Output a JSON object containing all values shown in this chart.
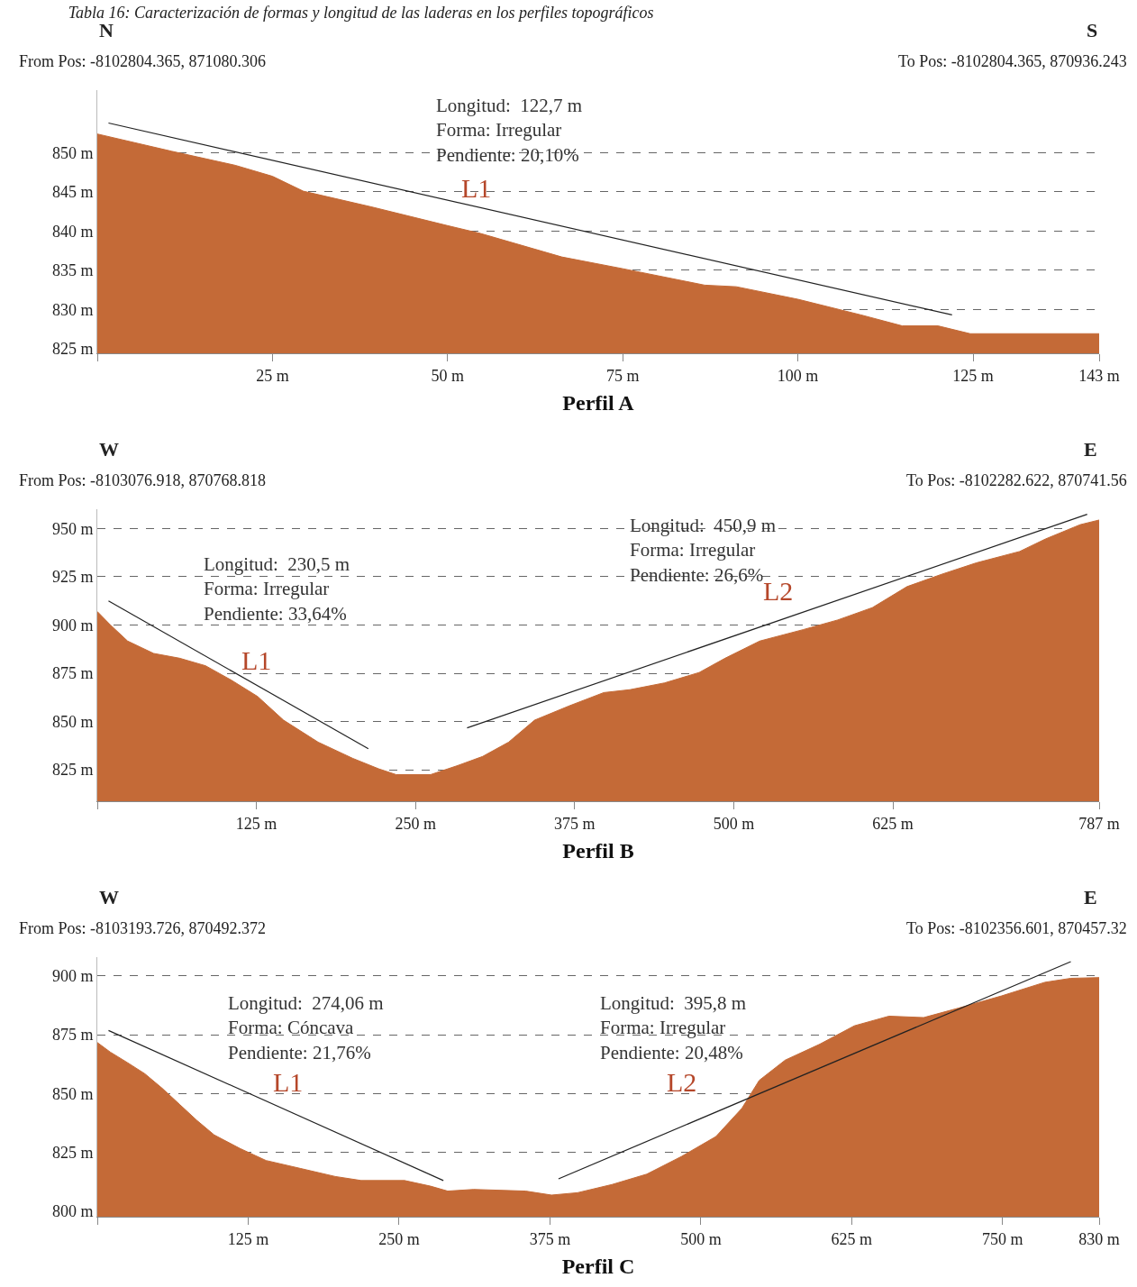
{
  "chart_data": [
    {
      "type": "area",
      "title": "Tabla 16: Caracterización de formas y longitud de las laderas en los perfiles topográficos",
      "xlabel": "Perfil A",
      "xlim": [
        0,
        143
      ],
      "ylim": [
        824.4,
        858
      ],
      "xticks": [
        {
          "value": 0,
          "label": null
        },
        {
          "value": 25,
          "label": "25 m"
        },
        {
          "value": 50,
          "label": "50 m"
        },
        {
          "value": 75,
          "label": "75 m"
        },
        {
          "value": 100,
          "label": "100 m"
        },
        {
          "value": 125,
          "label": "125 m"
        },
        {
          "value": 143,
          "label": "143 m"
        }
      ],
      "yticks": [
        {
          "value": 825,
          "label": "825 m"
        },
        {
          "value": 830,
          "label": "830 m"
        },
        {
          "value": 835,
          "label": "835 m"
        },
        {
          "value": 840,
          "label": "840 m"
        },
        {
          "value": 845,
          "label": "845 m"
        },
        {
          "value": 850,
          "label": "850 m"
        }
      ],
      "grid": "y",
      "series": [
        {
          "type": "area",
          "color": "#c46a37",
          "x": [
            0,
            10.6,
            19.7,
            25,
            29.4,
            39.1,
            50,
            54.7,
            66.3,
            75,
            86.7,
            91.2,
            100,
            109,
            114.9,
            120,
            124.6,
            143
          ],
          "values": [
            852.4,
            850.2,
            848.4,
            847,
            845.1,
            843.1,
            840.7,
            839.7,
            836.7,
            835.2,
            833.1,
            832.9,
            831.3,
            829.3,
            827.9,
            827.9,
            826.9,
            826.9
          ]
        },
        {
          "type": "line",
          "color": "#222222",
          "x": [
            1.6,
            122
          ],
          "values": [
            853.8,
            829.3
          ]
        }
      ],
      "annotations": [
        "N",
        "S",
        "From Pos: -8102804.365, 871080.306",
        "To Pos: -8102804.365, 870936.243",
        "Longitud:  122,7 m\nForma: Irregular\nPendiente: 20,10%",
        "L1"
      ]
    },
    {
      "type": "area",
      "xlabel": "Perfil B",
      "xlim": [
        0,
        787
      ],
      "ylim": [
        808.7,
        960
      ],
      "xticks": [
        {
          "value": 0,
          "label": null
        },
        {
          "value": 125,
          "label": "125 m"
        },
        {
          "value": 250,
          "label": "250 m"
        },
        {
          "value": 375,
          "label": "375 m"
        },
        {
          "value": 500,
          "label": "500 m"
        },
        {
          "value": 625,
          "label": "625 m"
        },
        {
          "value": 787,
          "label": "787 m"
        }
      ],
      "yticks": [
        {
          "value": 825,
          "label": "825 m"
        },
        {
          "value": 850,
          "label": "850 m"
        },
        {
          "value": 875,
          "label": "875 m"
        },
        {
          "value": 900,
          "label": "900 m"
        },
        {
          "value": 925,
          "label": "925 m"
        },
        {
          "value": 950,
          "label": "950 m"
        }
      ],
      "grid": "y",
      "series": [
        {
          "type": "area",
          "color": "#c46a37",
          "x": [
            0,
            10.2,
            23.8,
            44.2,
            64.6,
            85,
            105.4,
            125.9,
            146.3,
            173.5,
            200.7,
            221,
            234.7,
            261.9,
            282.3,
            302.7,
            323.1,
            343.5,
            370.7,
            397.9,
            418.4,
            445.6,
            472.8,
            493.2,
            520.4,
            554.4,
            581.6,
            608.8,
            636.1,
            663.3,
            690.5,
            724.5,
            744.9,
            772.1,
            787
          ],
          "values": [
            907,
            900.1,
            891.7,
            885.3,
            882.8,
            878.9,
            871.4,
            863,
            850.7,
            839.3,
            830.9,
            825.5,
            822.5,
            822.5,
            827,
            831.9,
            839.3,
            850.7,
            858.1,
            865,
            866.5,
            870,
            875.4,
            882.8,
            891.7,
            897.6,
            902.6,
            909,
            919.9,
            926.3,
            932.2,
            938.1,
            944.6,
            952,
            954.4
          ]
        },
        {
          "type": "line",
          "color": "#222222",
          "x": [
            8.8,
            212.9
          ],
          "values": [
            912.5,
            835.9
          ]
        },
        {
          "type": "line",
          "color": "#222222",
          "x": [
            290.5,
            777.6
          ],
          "values": [
            846.7,
            957.4
          ]
        }
      ],
      "annotations": [
        "W",
        "E",
        "From Pos: -8103076.918, 870768.818",
        "To Pos: -8102282.622, 870741.56",
        "Longitud:  230,5 m\nForma: Irregular\nPendiente: 33,64%",
        "L1",
        "Longitud:  450,9 m\nForma: Irregular\nPendiente: 26,6%",
        "L2"
      ]
    },
    {
      "type": "area",
      "xlabel": "Perfil C",
      "xlim": [
        0,
        830
      ],
      "ylim": [
        797.6,
        908
      ],
      "xticks": [
        {
          "value": 0,
          "label": null
        },
        {
          "value": 125,
          "label": "125 m"
        },
        {
          "value": 250,
          "label": "250 m"
        },
        {
          "value": 375,
          "label": "375 m"
        },
        {
          "value": 500,
          "label": "500 m"
        },
        {
          "value": 625,
          "label": "625 m"
        },
        {
          "value": 750,
          "label": "750 m"
        },
        {
          "value": 830,
          "label": "830 m"
        }
      ],
      "yticks": [
        {
          "value": 800,
          "label": "800 m"
        },
        {
          "value": 825,
          "label": "825 m"
        },
        {
          "value": 850,
          "label": "850 m"
        },
        {
          "value": 875,
          "label": "875 m"
        },
        {
          "value": 900,
          "label": "900 m"
        }
      ],
      "grid": "y",
      "series": [
        {
          "type": "area",
          "color": "#c46a37",
          "x": [
            0,
            10.8,
            25.1,
            39.4,
            53.8,
            68.1,
            82.4,
            96.8,
            118.3,
            139.8,
            168.5,
            197.1,
            218.6,
            254.5,
            276,
            290.3,
            311.8,
            354.8,
            376.3,
            397.8,
            426.5,
            455.2,
            483.9,
            512.5,
            534,
            548.4,
            569.9,
            598.6,
            627.2,
            655.9,
            684.6,
            713.3,
            749.1,
            785,
            806.5,
            830
          ],
          "values": [
            871.7,
            867.6,
            863.1,
            858.4,
            852.2,
            845.4,
            838.6,
            832.4,
            826.6,
            821.5,
            818.1,
            814.7,
            813,
            813,
            810.6,
            808.5,
            809.2,
            808.5,
            806.8,
            807.8,
            811.3,
            815.7,
            823.2,
            831.7,
            843.7,
            855.6,
            864.2,
            871,
            878.8,
            882.9,
            882.3,
            886.3,
            891.5,
            897.3,
            899,
            899.3
          ]
        },
        {
          "type": "line",
          "color": "#222222",
          "x": [
            9.3,
            286.7
          ],
          "values": [
            876.8,
            813
          ]
        },
        {
          "type": "line",
          "color": "#222222",
          "x": [
            382.1,
            806.5
          ],
          "values": [
            813.7,
            906.1
          ]
        }
      ],
      "annotations": [
        "W",
        "E",
        "From Pos: -8103193.726, 870492.372",
        "To Pos: -8102356.601, 870457.32",
        "Longitud:  274,06 m\nForma: Cóncava\nPendiente: 21,76%",
        "L1",
        "Longitud:  395,8 m\nForma: Irregular\nPendiente: 20,48%",
        "L2"
      ]
    }
  ]
}
